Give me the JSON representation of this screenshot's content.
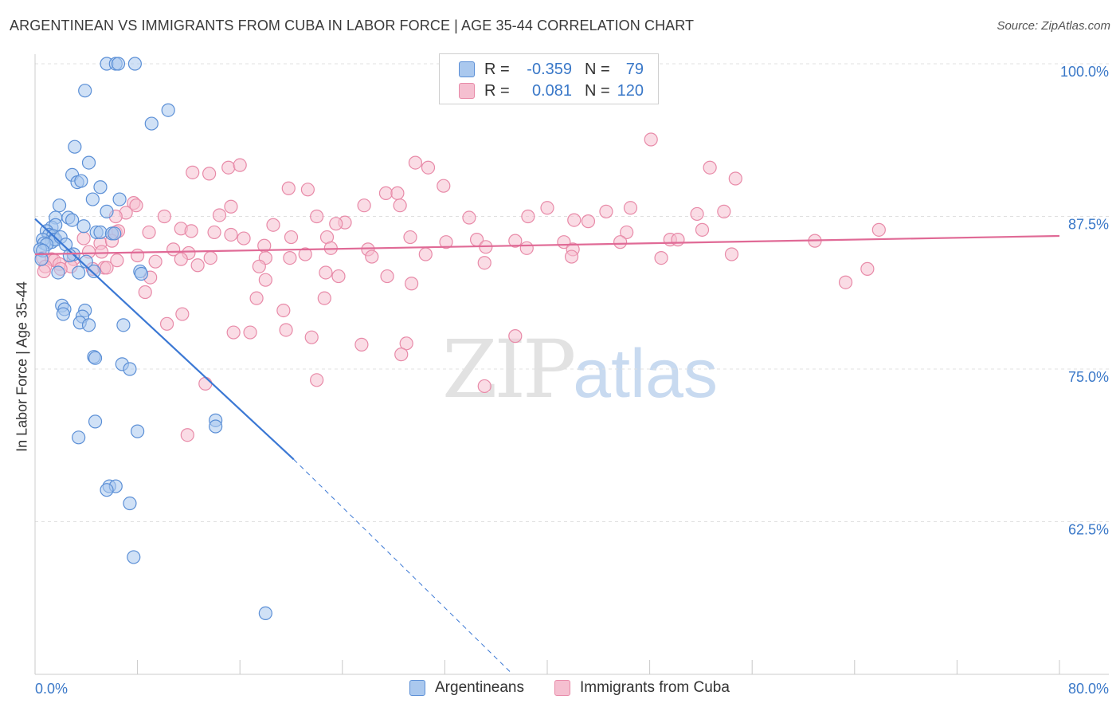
{
  "title": "ARGENTINEAN VS IMMIGRANTS FROM CUBA IN LABOR FORCE | AGE 35-44 CORRELATION CHART",
  "source": "Source: ZipAtlas.com",
  "watermark": {
    "zip": "ZIP",
    "atlas": "atlas"
  },
  "legend": {
    "rows": [
      {
        "r_label": "R =",
        "r_value": "-0.359",
        "n_label": "N =",
        "n_value": "79"
      },
      {
        "r_label": "R =",
        "r_value": "0.081",
        "n_label": "N =",
        "n_value": "120"
      }
    ]
  },
  "colors": {
    "blue_fill": "#aac8ee",
    "blue_stroke": "#5b8fd6",
    "blue_line": "#3b78d4",
    "pink_fill": "#f5bfd0",
    "pink_stroke": "#e88aa8",
    "pink_line": "#e06a96",
    "tick_label": "#3a78c8",
    "grid": "#e0e0e0"
  },
  "chart_data": {
    "type": "scatter",
    "title": "ARGENTINEAN VS IMMIGRANTS FROM CUBA IN LABOR FORCE | AGE 35-44 CORRELATION CHART",
    "xlabel": "",
    "ylabel": "In Labor Force | Age 35-44",
    "xlim": [
      0,
      80
    ],
    "ylim": [
      50,
      100
    ],
    "x_tick_labels": [
      "0.0%",
      "80.0%"
    ],
    "y_ticks": [
      62.5,
      75.0,
      87.5,
      100.0
    ],
    "y_tick_labels": [
      "62.5%",
      "75.0%",
      "87.5%",
      "100.0%"
    ],
    "grid": true,
    "legend_position": "bottom",
    "series": [
      {
        "name": "Argentineans",
        "color": "#5b8fd6",
        "trend": {
          "x": [
            0.0,
            20.2
          ],
          "y": [
            87.3,
            67.6
          ],
          "dashed_to": [
            37.3,
            50.0
          ]
        },
        "points": [
          [
            5.6,
            100.0
          ],
          [
            6.3,
            100.0
          ],
          [
            6.5,
            100.0
          ],
          [
            7.8,
            100.0
          ],
          [
            3.9,
            97.8
          ],
          [
            10.4,
            96.2
          ],
          [
            9.1,
            95.1
          ],
          [
            3.1,
            93.2
          ],
          [
            4.2,
            91.9
          ],
          [
            2.9,
            90.9
          ],
          [
            3.3,
            90.3
          ],
          [
            3.6,
            90.4
          ],
          [
            4.5,
            88.9
          ],
          [
            6.6,
            88.9
          ],
          [
            5.1,
            89.9
          ],
          [
            1.9,
            88.4
          ],
          [
            2.6,
            87.4
          ],
          [
            1.6,
            87.4
          ],
          [
            2.9,
            87.2
          ],
          [
            5.6,
            87.9
          ],
          [
            1.3,
            86.6
          ],
          [
            1.6,
            86.8
          ],
          [
            3.8,
            86.7
          ],
          [
            4.8,
            86.2
          ],
          [
            5.1,
            86.2
          ],
          [
            6.0,
            86.1
          ],
          [
            0.9,
            86.3
          ],
          [
            1.1,
            86.0
          ],
          [
            1.4,
            85.9
          ],
          [
            1.5,
            85.6
          ],
          [
            1.3,
            85.4
          ],
          [
            1.6,
            85.6
          ],
          [
            2.0,
            85.8
          ],
          [
            0.6,
            85.6
          ],
          [
            0.7,
            85.3
          ],
          [
            0.9,
            85.2
          ],
          [
            2.4,
            85.2
          ],
          [
            0.4,
            84.8
          ],
          [
            0.6,
            84.7
          ],
          [
            3.0,
            84.4
          ],
          [
            2.7,
            84.3
          ],
          [
            0.5,
            84.0
          ],
          [
            4.0,
            83.8
          ],
          [
            6.2,
            86.1
          ],
          [
            3.4,
            82.9
          ],
          [
            1.8,
            82.9
          ],
          [
            4.6,
            83.0
          ],
          [
            8.2,
            83.0
          ],
          [
            8.3,
            82.8
          ],
          [
            2.1,
            80.2
          ],
          [
            2.3,
            79.9
          ],
          [
            2.2,
            79.5
          ],
          [
            3.9,
            79.8
          ],
          [
            3.7,
            79.3
          ],
          [
            3.5,
            78.8
          ],
          [
            4.2,
            78.6
          ],
          [
            6.9,
            78.6
          ],
          [
            4.6,
            76.0
          ],
          [
            4.7,
            75.9
          ],
          [
            6.8,
            75.4
          ],
          [
            7.4,
            75.0
          ],
          [
            4.7,
            70.7
          ],
          [
            14.1,
            70.8
          ],
          [
            14.1,
            70.3
          ],
          [
            8.0,
            69.9
          ],
          [
            3.4,
            69.4
          ],
          [
            5.8,
            65.4
          ],
          [
            6.3,
            65.4
          ],
          [
            5.6,
            65.1
          ],
          [
            7.4,
            64.0
          ],
          [
            7.7,
            59.6
          ],
          [
            18.0,
            55.0
          ]
        ]
      },
      {
        "name": "Immigrants from Cuba",
        "color": "#e88aa8",
        "trend": {
          "x": [
            0.0,
            80.0
          ],
          "y": [
            84.4,
            85.9
          ]
        },
        "points": [
          [
            48.1,
            93.8
          ],
          [
            29.7,
            91.9
          ],
          [
            30.7,
            91.5
          ],
          [
            54.7,
            90.6
          ],
          [
            52.7,
            91.5
          ],
          [
            15.1,
            91.5
          ],
          [
            12.3,
            91.1
          ],
          [
            13.6,
            91.0
          ],
          [
            16.0,
            91.7
          ],
          [
            19.8,
            89.8
          ],
          [
            21.3,
            89.7
          ],
          [
            31.9,
            90.0
          ],
          [
            27.4,
            89.4
          ],
          [
            28.3,
            89.4
          ],
          [
            28.5,
            88.4
          ],
          [
            25.7,
            88.4
          ],
          [
            15.3,
            88.3
          ],
          [
            46.5,
            88.2
          ],
          [
            40.0,
            88.2
          ],
          [
            44.6,
            87.9
          ],
          [
            51.7,
            87.7
          ],
          [
            53.8,
            87.9
          ],
          [
            7.7,
            88.6
          ],
          [
            7.9,
            88.4
          ],
          [
            7.1,
            87.8
          ],
          [
            10.1,
            87.5
          ],
          [
            6.3,
            87.5
          ],
          [
            14.4,
            87.6
          ],
          [
            22.0,
            87.5
          ],
          [
            33.9,
            87.4
          ],
          [
            38.5,
            87.5
          ],
          [
            42.1,
            87.2
          ],
          [
            43.2,
            87.1
          ],
          [
            46.2,
            86.2
          ],
          [
            52.1,
            86.4
          ],
          [
            24.2,
            87.0
          ],
          [
            23.5,
            86.9
          ],
          [
            18.6,
            86.8
          ],
          [
            11.4,
            86.5
          ],
          [
            12.2,
            86.3
          ],
          [
            14.0,
            86.2
          ],
          [
            8.9,
            86.2
          ],
          [
            6.3,
            86.2
          ],
          [
            15.3,
            86.0
          ],
          [
            16.3,
            85.7
          ],
          [
            20.0,
            85.8
          ],
          [
            22.8,
            85.8
          ],
          [
            29.3,
            85.8
          ],
          [
            32.1,
            85.4
          ],
          [
            34.5,
            85.6
          ],
          [
            37.5,
            85.5
          ],
          [
            41.3,
            85.4
          ],
          [
            45.7,
            85.4
          ],
          [
            49.6,
            85.6
          ],
          [
            50.2,
            85.6
          ],
          [
            60.9,
            85.5
          ],
          [
            65.9,
            86.4
          ],
          [
            6.5,
            86.3
          ],
          [
            3.8,
            85.7
          ],
          [
            5.1,
            85.3
          ],
          [
            6.0,
            85.5
          ],
          [
            10.8,
            84.8
          ],
          [
            12.0,
            84.5
          ],
          [
            17.9,
            85.1
          ],
          [
            23.1,
            84.9
          ],
          [
            26.0,
            84.8
          ],
          [
            30.5,
            84.4
          ],
          [
            35.2,
            85.0
          ],
          [
            38.4,
            84.9
          ],
          [
            42.0,
            84.8
          ],
          [
            41.9,
            84.2
          ],
          [
            48.9,
            84.1
          ],
          [
            54.4,
            84.4
          ],
          [
            8.0,
            84.3
          ],
          [
            9.4,
            83.8
          ],
          [
            11.4,
            84.0
          ],
          [
            13.7,
            84.1
          ],
          [
            18.0,
            84.1
          ],
          [
            19.9,
            84.1
          ],
          [
            21.1,
            84.4
          ],
          [
            26.3,
            84.2
          ],
          [
            35.1,
            83.7
          ],
          [
            3.0,
            84.0
          ],
          [
            4.2,
            84.6
          ],
          [
            5.2,
            84.6
          ],
          [
            0.6,
            84.1
          ],
          [
            1.3,
            84.0
          ],
          [
            1.5,
            83.9
          ],
          [
            0.8,
            83.4
          ],
          [
            1.9,
            83.6
          ],
          [
            2.8,
            83.4
          ],
          [
            4.5,
            83.2
          ],
          [
            5.4,
            83.3
          ],
          [
            6.4,
            83.9
          ],
          [
            12.7,
            83.5
          ],
          [
            17.5,
            83.4
          ],
          [
            22.7,
            82.9
          ],
          [
            23.7,
            82.6
          ],
          [
            29.4,
            82.0
          ],
          [
            63.3,
            82.1
          ],
          [
            65.0,
            83.2
          ],
          [
            9.0,
            82.5
          ],
          [
            18.0,
            82.3
          ],
          [
            0.7,
            83.0
          ],
          [
            2.0,
            83.2
          ],
          [
            5.6,
            83.3
          ],
          [
            8.6,
            81.3
          ],
          [
            17.3,
            80.8
          ],
          [
            22.6,
            80.8
          ],
          [
            11.5,
            79.5
          ],
          [
            10.3,
            78.7
          ],
          [
            19.4,
            79.8
          ],
          [
            19.6,
            78.2
          ],
          [
            15.5,
            78.0
          ],
          [
            16.8,
            78.0
          ],
          [
            21.6,
            77.6
          ],
          [
            25.5,
            77.0
          ],
          [
            29.0,
            77.1
          ],
          [
            37.5,
            77.7
          ],
          [
            28.6,
            76.2
          ],
          [
            22.0,
            74.1
          ],
          [
            35.1,
            73.6
          ],
          [
            13.3,
            73.8
          ],
          [
            11.9,
            69.6
          ],
          [
            27.5,
            82.6
          ]
        ]
      }
    ]
  },
  "bottom_legend": [
    {
      "label": "Argentineans"
    },
    {
      "label": "Immigrants from Cuba"
    }
  ]
}
